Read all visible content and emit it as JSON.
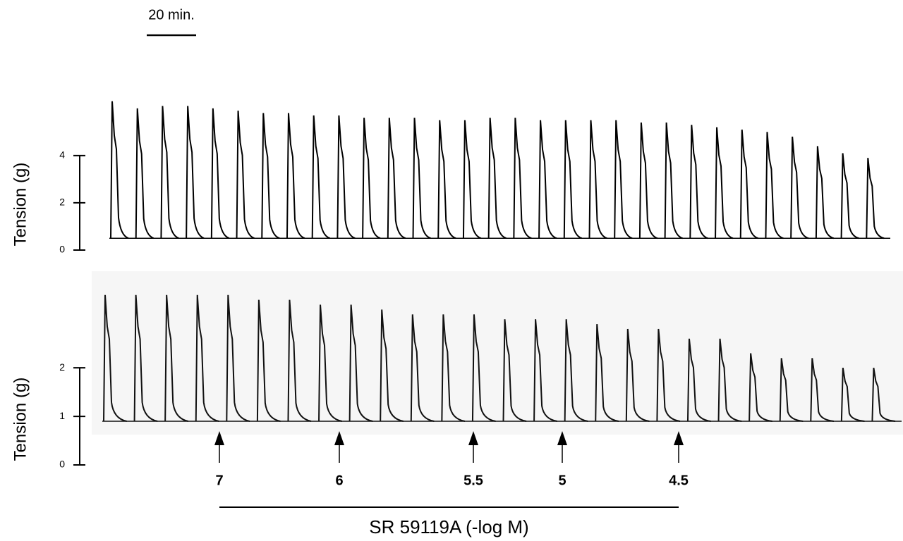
{
  "scale_bar": "20 min.",
  "chart_data": [
    {
      "type": "trace",
      "ylabel": "Tension (g)",
      "ylim": [
        0,
        6.5
      ],
      "yticks": [
        0,
        2,
        4
      ],
      "baseline": 0.5,
      "color": "#000000",
      "values": [
        6.3,
        6.0,
        6.1,
        6.1,
        6.0,
        5.9,
        5.8,
        5.8,
        5.7,
        5.7,
        5.6,
        5.6,
        5.6,
        5.5,
        5.5,
        5.6,
        5.6,
        5.5,
        5.5,
        5.5,
        5.5,
        5.4,
        5.4,
        5.3,
        5.2,
        5.1,
        5.0,
        4.8,
        4.4,
        4.1,
        3.9
      ]
    },
    {
      "type": "trace",
      "ylabel": "Tension (g)",
      "ylim": [
        0,
        3.7
      ],
      "yticks": [
        0,
        1,
        2
      ],
      "baseline": 0.9,
      "color": "#111111",
      "values": [
        3.5,
        3.5,
        3.5,
        3.5,
        3.5,
        3.4,
        3.4,
        3.3,
        3.3,
        3.2,
        3.1,
        3.1,
        3.1,
        3.0,
        3.0,
        3.0,
        2.9,
        2.8,
        2.8,
        2.6,
        2.6,
        2.3,
        2.2,
        2.2,
        2.0,
        2.0
      ],
      "annotations": [
        "7",
        "6",
        "5.5",
        "5",
        "4.5"
      ],
      "annotation_bar_label": "SR 59119A (-log M)"
    }
  ]
}
